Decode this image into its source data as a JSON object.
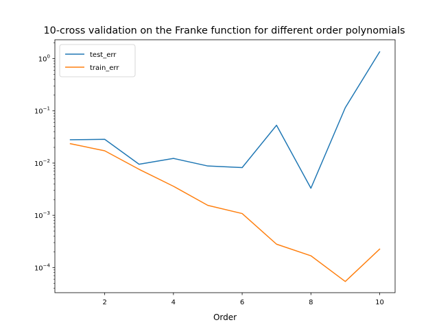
{
  "chart_data": {
    "type": "line",
    "title": "10-cross validation on the Franke function for different order polynomials",
    "xlabel": "Order",
    "ylabel": "",
    "x": [
      1,
      2,
      3,
      4,
      5,
      6,
      7,
      8,
      9,
      10
    ],
    "xlim": [
      0.55,
      10.45
    ],
    "ylim": [
      3.3e-05,
      2.3
    ],
    "yscale": "log",
    "xticks": [
      2,
      4,
      6,
      8,
      10
    ],
    "xtick_labels": [
      "2",
      "4",
      "6",
      "8",
      "10"
    ],
    "yticks": [
      0.0001,
      0.001,
      0.01,
      0.1,
      1
    ],
    "ytick_labels": [
      {
        "base": "10",
        "exp": "−4"
      },
      {
        "base": "10",
        "exp": "−3"
      },
      {
        "base": "10",
        "exp": "−2"
      },
      {
        "base": "10",
        "exp": "−1"
      },
      {
        "base": "10",
        "exp": "0"
      }
    ],
    "grid": false,
    "legend_position": "top-left",
    "series": [
      {
        "name": "test_err",
        "color": "#1f77b4",
        "values": [
          0.028,
          0.0285,
          0.0095,
          0.0123,
          0.0088,
          0.0082,
          0.053,
          0.0033,
          0.115,
          1.35
        ]
      },
      {
        "name": "train_err",
        "color": "#ff7f0e",
        "values": [
          0.0235,
          0.0172,
          0.0076,
          0.0036,
          0.00155,
          0.00108,
          0.00028,
          0.000168,
          5.4e-05,
          0.000225
        ]
      }
    ]
  }
}
